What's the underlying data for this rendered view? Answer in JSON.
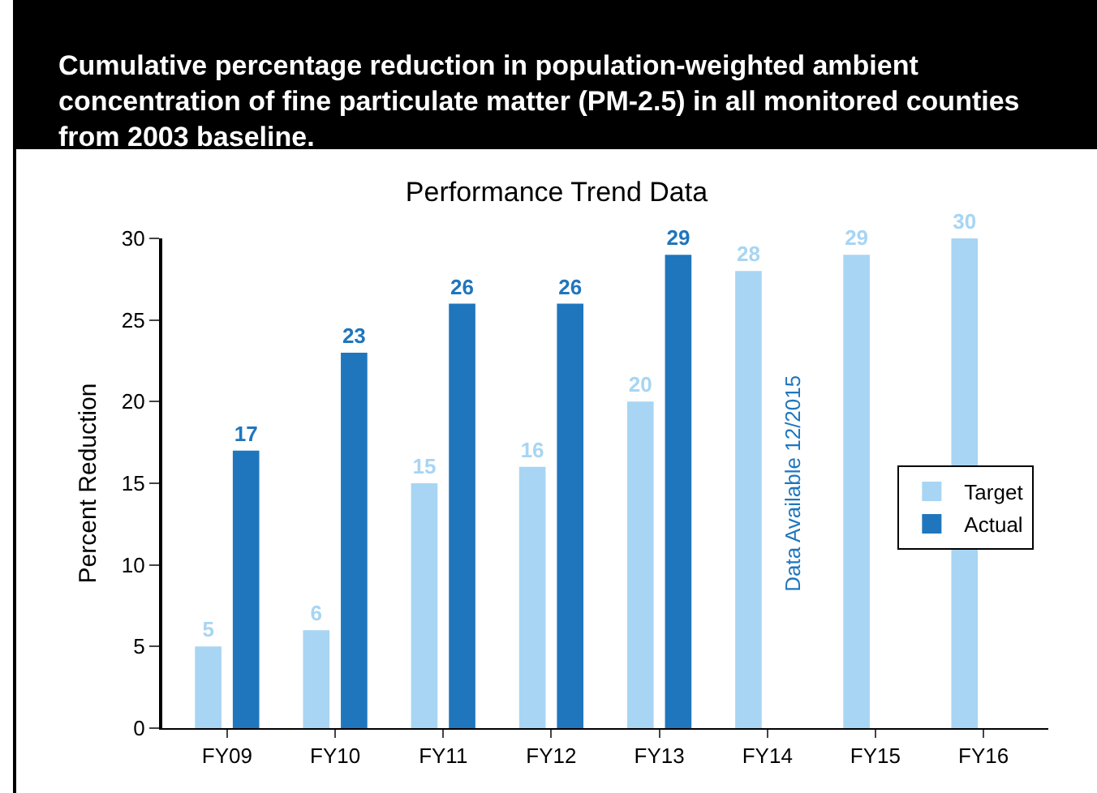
{
  "chart_data": {
    "type": "bar",
    "title": "Cumulative percentage reduction in population-weighted ambient concentration of fine particulate matter (PM-2.5) in all monitored counties from 2003 baseline.",
    "subtitle": "Performance Trend Data",
    "ylabel": "Percent Reduction",
    "categories": [
      "FY09",
      "FY10",
      "FY11",
      "FY12",
      "FY13",
      "FY14",
      "FY15",
      "FY16"
    ],
    "series": [
      {
        "name": "Target",
        "color": "#a8d5f3",
        "values": [
          5,
          6,
          15,
          16,
          20,
          28,
          29,
          30
        ]
      },
      {
        "name": "Actual",
        "color": "#1f76bd",
        "values": [
          17,
          23,
          26,
          26,
          29,
          null,
          null,
          null
        ]
      }
    ],
    "ylim": [
      0,
      30
    ],
    "yticks": [
      0,
      5,
      10,
      15,
      20,
      25,
      30
    ],
    "grid": false,
    "legend": "right",
    "data_labels": true,
    "annotations": [
      {
        "text": "Data Available 12/2015",
        "x": "FY14",
        "y": 15
      }
    ]
  }
}
